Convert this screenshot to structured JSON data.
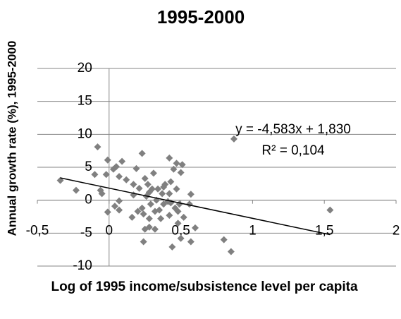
{
  "chart_data": {
    "type": "scatter",
    "title": "1995-2000",
    "x_label": "Log of 1995 income/subsistence level per capita",
    "y_label": "Annual growth rate (%), 1995-2000",
    "color": "#808080",
    "x": [
      -0.34,
      -0.23,
      -0.08,
      -0.1,
      -0.06,
      -0.05,
      -0.02,
      -0.01,
      -0.01,
      0.03,
      0.04,
      0.05,
      0.07,
      0.09,
      0.07,
      0.07,
      0.12,
      0.16,
      0.17,
      0.19,
      0.17,
      0.2,
      0.21,
      0.23,
      0.23,
      0.24,
      0.24,
      0.25,
      0.25,
      0.26,
      0.27,
      0.28,
      0.28,
      0.28,
      0.29,
      0.3,
      0.31,
      0.32,
      0.32,
      0.33,
      0.34,
      0.35,
      0.36,
      0.37,
      0.38,
      0.38,
      0.39,
      0.41,
      0.42,
      0.42,
      0.42,
      0.43,
      0.43,
      0.44,
      0.45,
      0.46,
      0.47,
      0.47,
      0.48,
      0.48,
      0.49,
      0.5,
      0.51,
      0.5,
      0.52,
      0.56,
      0.57,
      0.57,
      0.6,
      0.8,
      0.85,
      0.87,
      1.54
    ],
    "values": [
      3.0,
      1.5,
      8.1,
      3.9,
      1.5,
      1.0,
      3.9,
      6.1,
      -1.8,
      4.7,
      -0.9,
      5.1,
      3.6,
      5.9,
      -0.1,
      -1.5,
      3.1,
      -2.6,
      2.4,
      4.8,
      0.8,
      -1.7,
      1.8,
      7.1,
      -1.2,
      -6.3,
      -2.1,
      -4.4,
      3.3,
      0.6,
      2.4,
      -2.8,
      1.2,
      -4.1,
      -0.6,
      1.7,
      4.1,
      -1.7,
      -4.4,
      0.0,
      1.7,
      -1.5,
      -2.8,
      1.0,
      2.0,
      -0.6,
      2.4,
      -0.2,
      1.0,
      -2.3,
      6.4,
      2.8,
      -0.4,
      -7.1,
      4.7,
      -1.2,
      5.6,
      1.7,
      -3.5,
      -1.7,
      -0.6,
      4.2,
      5.4,
      -5.8,
      -2.6,
      -0.6,
      0.9,
      -6.3,
      -4.2,
      -6.0,
      -7.8,
      9.3,
      -1.5
    ],
    "trendline": {
      "equation": "y = -4,583x + 1,830",
      "r_squared_label": "R² = 0,104",
      "slope": -4.583,
      "intercept": 1.83
    },
    "xlim": [
      -0.5,
      2
    ],
    "ylim": [
      -10,
      20
    ],
    "xticks": [
      {
        "value": -0.5,
        "label": "-0,5"
      },
      0,
      {
        "value": 0.5,
        "label": "0,5"
      },
      1,
      {
        "value": 1.5,
        "label": "1,5"
      },
      2
    ],
    "yticks": [
      -10,
      -5,
      0,
      5,
      10,
      15,
      20
    ],
    "grid": true
  }
}
